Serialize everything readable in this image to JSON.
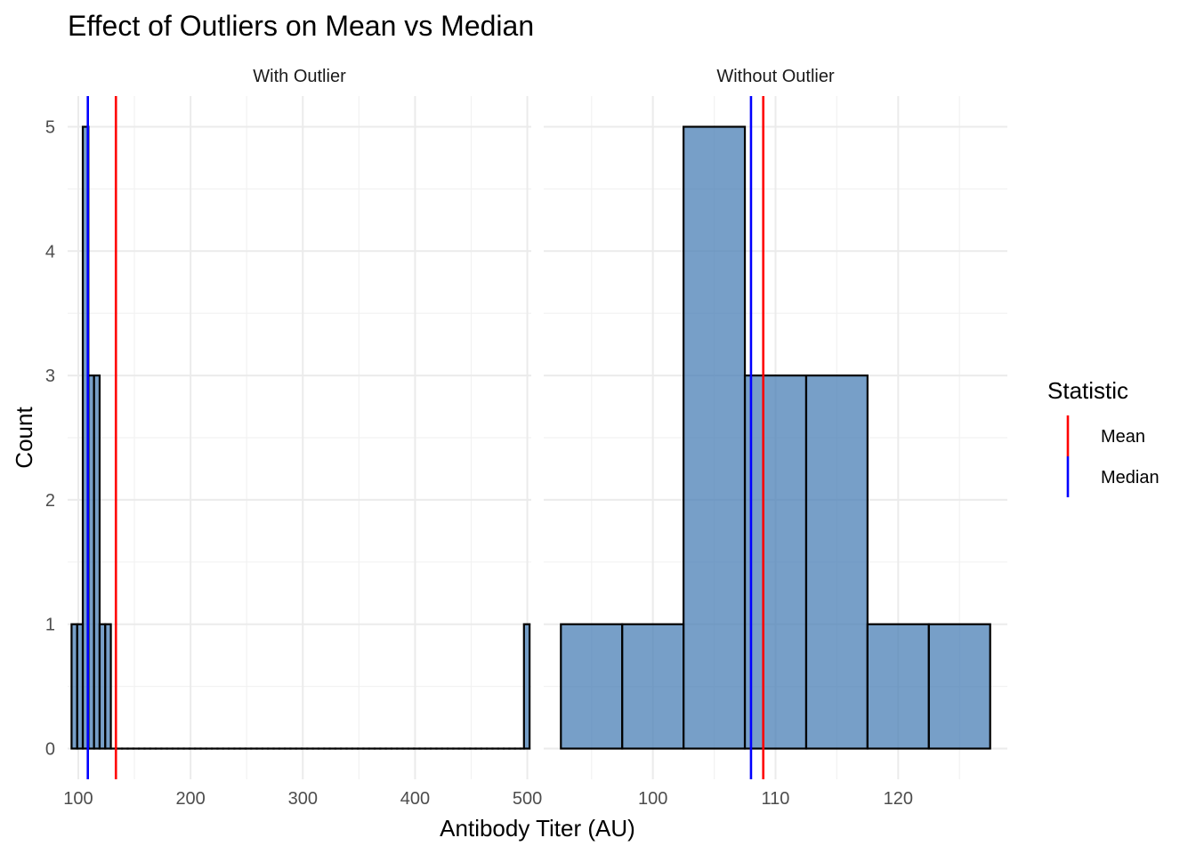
{
  "chart_data": {
    "type": "bar",
    "title": "Effect of Outliers on Mean vs Median",
    "xlabel": "Antibody Titer (AU)",
    "ylabel": "Count",
    "ylim": [
      0,
      5
    ],
    "yticks": [
      0,
      1,
      2,
      3,
      4,
      5
    ],
    "grid": true,
    "bar_color": "#4a7fb5",
    "panels": [
      {
        "name": "With Outlier",
        "xlim": [
          90.5,
          503.5
        ],
        "xticks": [
          100,
          200,
          300,
          400,
          500
        ],
        "bins": [
          {
            "x0": 94,
            "x1": 99,
            "count": 1
          },
          {
            "x0": 99,
            "x1": 104,
            "count": 1
          },
          {
            "x0": 104,
            "x1": 109,
            "count": 5
          },
          {
            "x0": 109,
            "x1": 114,
            "count": 3
          },
          {
            "x0": 114,
            "x1": 119,
            "count": 3
          },
          {
            "x0": 119,
            "x1": 124,
            "count": 1
          },
          {
            "x0": 124,
            "x1": 129,
            "count": 1
          },
          {
            "x0": 129,
            "x1": 497,
            "count": 0,
            "bin_width": 5
          },
          {
            "x0": 497,
            "x1": 502,
            "count": 1
          }
        ],
        "mean": 133.5,
        "median": 108.5
      },
      {
        "name": "Without Outlier",
        "xlim": [
          91.1,
          128.9
        ],
        "xticks": [
          100,
          110,
          120
        ],
        "bins": [
          {
            "x0": 92.5,
            "x1": 97.5,
            "count": 1
          },
          {
            "x0": 97.5,
            "x1": 102.5,
            "count": 1
          },
          {
            "x0": 102.5,
            "x1": 107.5,
            "count": 5
          },
          {
            "x0": 107.5,
            "x1": 112.5,
            "count": 3
          },
          {
            "x0": 112.5,
            "x1": 117.5,
            "count": 3
          },
          {
            "x0": 117.5,
            "x1": 122.5,
            "count": 1
          },
          {
            "x0": 122.5,
            "x1": 127.5,
            "count": 1
          }
        ],
        "mean": 109,
        "median": 108
      }
    ],
    "legend": {
      "title": "Statistic",
      "position": "right",
      "items": [
        {
          "label": "Mean",
          "color": "#ff0000"
        },
        {
          "label": "Median",
          "color": "#0000ff"
        }
      ]
    }
  }
}
